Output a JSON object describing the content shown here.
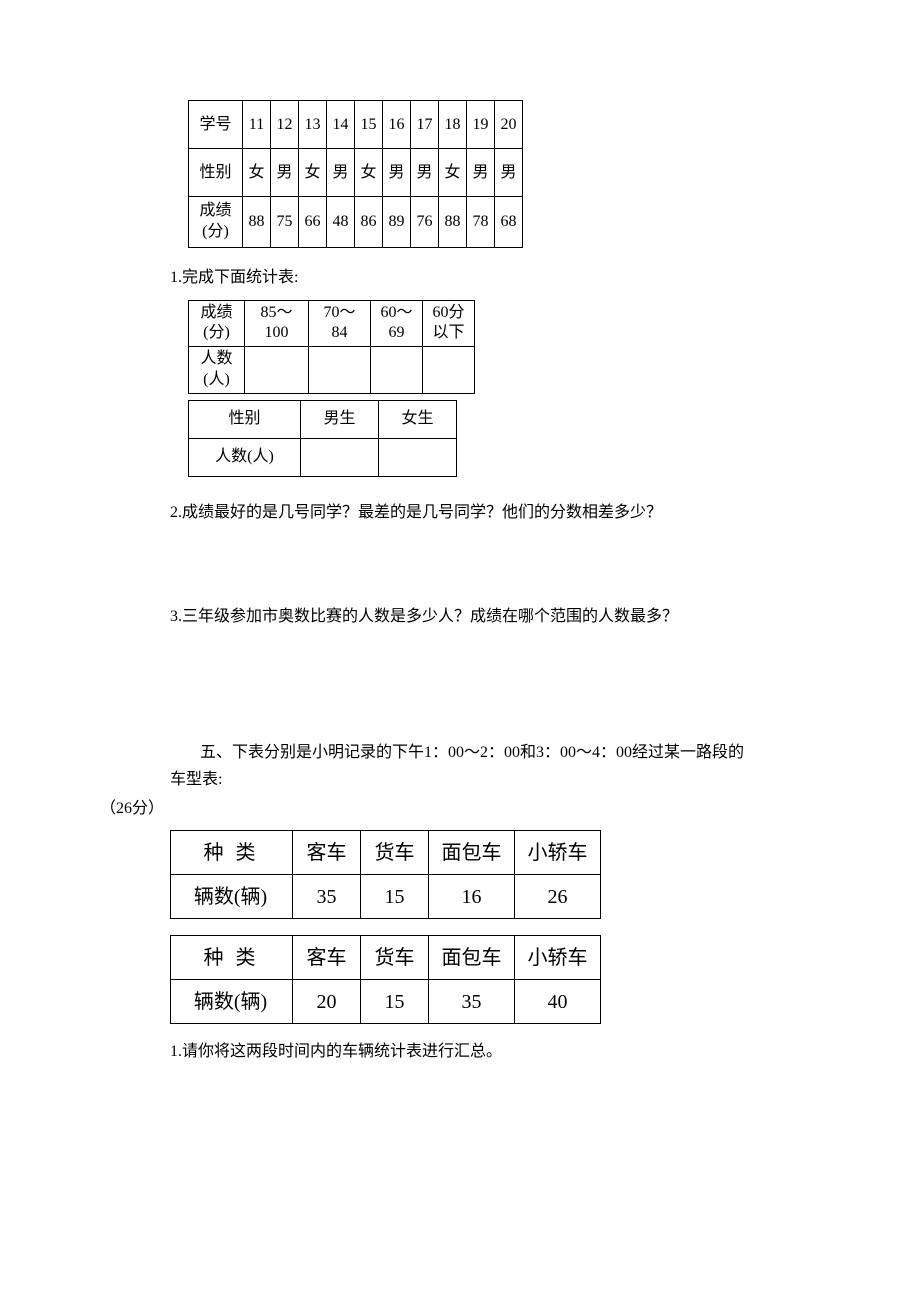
{
  "student_data": {
    "headers": {
      "id": "学号",
      "gender": "性别",
      "score": "成绩<br>(分)"
    },
    "ids": [
      "11",
      "12",
      "13",
      "14",
      "15",
      "16",
      "17",
      "18",
      "19",
      "20"
    ],
    "genders": [
      "女",
      "男",
      "女",
      "男",
      "女",
      "男",
      "男",
      "女",
      "男",
      "男"
    ],
    "scores": [
      "88",
      "75",
      "66",
      "48",
      "86",
      "89",
      "76",
      "88",
      "78",
      "68"
    ]
  },
  "q1": {
    "label": "1.完成下面统计表:"
  },
  "score_range_table": {
    "row_header1": "成绩<br>(分)",
    "row_header2": "人数<br>(人)",
    "ranges": [
      "85～<br>100",
      "70～<br>84",
      "60～<br>69",
      "60分<br>以下"
    ]
  },
  "gender_table": {
    "header": "性别",
    "count_label": "人数(人)",
    "cols": [
      "男生",
      "女生"
    ]
  },
  "q2": {
    "label": "2.成绩最好的是几号同学？最差的是几号同学？他们的分数相差多少？"
  },
  "q3": {
    "label": "3.三年级参加市奥数比赛的人数是多少人？成绩在哪个范围的人数最多？"
  },
  "section5": {
    "header_line1": "五、下表分别是小明记录的下午1：00～2：00和3：00～4：00经过某一路段的车型表:",
    "header_line2": "（26分）"
  },
  "vehicle_table_a": {
    "type_label": "种类",
    "count_label": "辆数(辆)",
    "types": [
      "客车",
      "货车",
      "面包车",
      "小轿车"
    ],
    "counts": [
      "35",
      "15",
      "16",
      "26"
    ]
  },
  "vehicle_table_b": {
    "type_label": "种类",
    "count_label": "辆数(辆)",
    "types": [
      "客车",
      "货车",
      "面包车",
      "小轿车"
    ],
    "counts": [
      "20",
      "15",
      "35",
      "40"
    ]
  },
  "q_final": {
    "label": "1.请你将这两段时间内的车辆统计表进行汇总。"
  }
}
